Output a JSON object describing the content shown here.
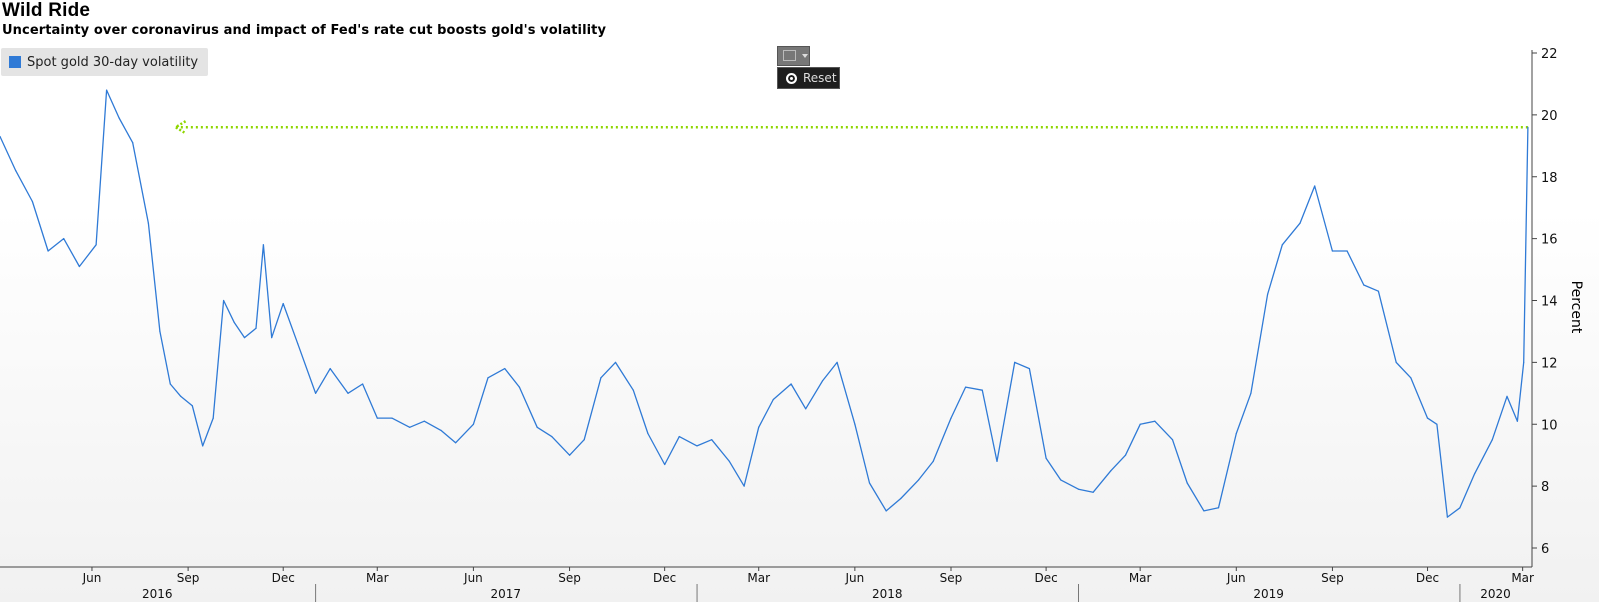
{
  "title": "Wild Ride",
  "subtitle": "Uncertainty over coronavirus and impact of Fed's rate cut boosts gold's volatility",
  "toolbar": {
    "chart_icon": "line-chart-icon",
    "reset_label": "Reset"
  },
  "colors": {
    "series": "#2f7ad6",
    "arrow": "#8fd600"
  },
  "chart_data": {
    "type": "line",
    "title": "Wild Ride",
    "subtitle": "Uncertainty over coronavirus and impact of Fed's rate cut boosts gold's volatility",
    "ylabel": "Percent",
    "ylim": [
      5.5,
      22.3
    ],
    "yticks": [
      6,
      8,
      10,
      12,
      14,
      16,
      18,
      20,
      22
    ],
    "y_axis_side": "right",
    "xlim": [
      "2016-03-05",
      "2020-03-09"
    ],
    "month_ticks": [
      {
        "date": "2016-06-01",
        "label": "Jun"
      },
      {
        "date": "2016-09-01",
        "label": "Sep"
      },
      {
        "date": "2016-12-01",
        "label": "Dec"
      },
      {
        "date": "2017-03-01",
        "label": "Mar"
      },
      {
        "date": "2017-06-01",
        "label": "Jun"
      },
      {
        "date": "2017-09-01",
        "label": "Sep"
      },
      {
        "date": "2017-12-01",
        "label": "Dec"
      },
      {
        "date": "2018-03-01",
        "label": "Mar"
      },
      {
        "date": "2018-06-01",
        "label": "Jun"
      },
      {
        "date": "2018-09-01",
        "label": "Sep"
      },
      {
        "date": "2018-12-01",
        "label": "Dec"
      },
      {
        "date": "2019-03-01",
        "label": "Mar"
      },
      {
        "date": "2019-06-01",
        "label": "Jun"
      },
      {
        "date": "2019-09-01",
        "label": "Sep"
      },
      {
        "date": "2019-12-01",
        "label": "Dec"
      },
      {
        "date": "2020-03-01",
        "label": "Mar"
      }
    ],
    "year_labels": [
      "2016",
      "2017",
      "2018",
      "2019",
      "2020"
    ],
    "grid": false,
    "legend": {
      "placement": "top-left",
      "entries": [
        "Spot gold 30-day volatility"
      ]
    },
    "annotation": {
      "type": "dotted-arrow",
      "value": 19.6,
      "from": "2020-03-06",
      "to": "2016-08-20"
    },
    "series": [
      {
        "name": "Spot gold 30-day volatility",
        "x": [
          "2016-03-05",
          "2016-03-20",
          "2016-04-05",
          "2016-04-20",
          "2016-05-05",
          "2016-05-20",
          "2016-06-05",
          "2016-06-15",
          "2016-06-27",
          "2016-07-10",
          "2016-07-25",
          "2016-08-05",
          "2016-08-15",
          "2016-08-25",
          "2016-09-05",
          "2016-09-15",
          "2016-09-25",
          "2016-10-05",
          "2016-10-15",
          "2016-10-25",
          "2016-11-05",
          "2016-11-12",
          "2016-11-20",
          "2016-12-01",
          "2016-12-15",
          "2017-01-01",
          "2017-01-15",
          "2017-02-01",
          "2017-02-15",
          "2017-03-01",
          "2017-03-15",
          "2017-04-01",
          "2017-04-15",
          "2017-05-01",
          "2017-05-15",
          "2017-06-01",
          "2017-06-15",
          "2017-07-01",
          "2017-07-15",
          "2017-08-01",
          "2017-08-15",
          "2017-09-01",
          "2017-09-15",
          "2017-10-01",
          "2017-10-15",
          "2017-11-01",
          "2017-11-15",
          "2017-12-01",
          "2017-12-15",
          "2018-01-01",
          "2018-01-15",
          "2018-02-01",
          "2018-02-15",
          "2018-03-01",
          "2018-03-15",
          "2018-04-01",
          "2018-04-15",
          "2018-05-01",
          "2018-05-15",
          "2018-06-01",
          "2018-06-15",
          "2018-07-01",
          "2018-07-15",
          "2018-08-01",
          "2018-08-15",
          "2018-09-01",
          "2018-09-15",
          "2018-10-01",
          "2018-10-15",
          "2018-11-01",
          "2018-11-15",
          "2018-12-01",
          "2018-12-15",
          "2019-01-01",
          "2019-01-15",
          "2019-02-01",
          "2019-02-15",
          "2019-03-01",
          "2019-03-15",
          "2019-04-01",
          "2019-04-15",
          "2019-05-01",
          "2019-05-15",
          "2019-06-01",
          "2019-06-15",
          "2019-07-01",
          "2019-07-15",
          "2019-08-01",
          "2019-08-15",
          "2019-09-01",
          "2019-09-15",
          "2019-10-01",
          "2019-10-15",
          "2019-11-01",
          "2019-11-15",
          "2019-12-01",
          "2019-12-10",
          "2019-12-20",
          "2020-01-01",
          "2020-01-15",
          "2020-02-01",
          "2020-02-15",
          "2020-02-25",
          "2020-03-02",
          "2020-03-06"
        ],
        "y": [
          19.3,
          18.2,
          17.2,
          15.6,
          16.0,
          15.1,
          15.8,
          20.8,
          19.9,
          19.1,
          16.5,
          13.0,
          11.3,
          10.9,
          10.6,
          9.3,
          10.2,
          14.0,
          13.3,
          12.8,
          13.1,
          15.8,
          12.8,
          13.9,
          12.6,
          11.0,
          11.8,
          11.0,
          11.3,
          10.2,
          10.2,
          9.9,
          10.1,
          9.8,
          9.4,
          10.0,
          11.5,
          11.8,
          11.2,
          9.9,
          9.6,
          9.0,
          9.5,
          11.5,
          12.0,
          11.1,
          9.7,
          8.7,
          9.6,
          9.3,
          9.5,
          8.8,
          8.0,
          9.9,
          10.8,
          11.3,
          10.5,
          11.4,
          12.0,
          10.0,
          8.1,
          7.2,
          7.6,
          8.2,
          8.8,
          10.2,
          11.2,
          11.1,
          8.8,
          12.0,
          11.8,
          8.9,
          8.2,
          7.9,
          7.8,
          8.5,
          9.0,
          10.0,
          10.1,
          9.5,
          8.1,
          7.2,
          7.3,
          9.7,
          11.0,
          14.2,
          15.8,
          16.5,
          17.7,
          15.6,
          15.6,
          14.5,
          14.3,
          12.0,
          11.5,
          10.2,
          10.0,
          7.0,
          7.3,
          8.4,
          9.5,
          10.9,
          10.1,
          12.0,
          19.6
        ]
      }
    ]
  }
}
